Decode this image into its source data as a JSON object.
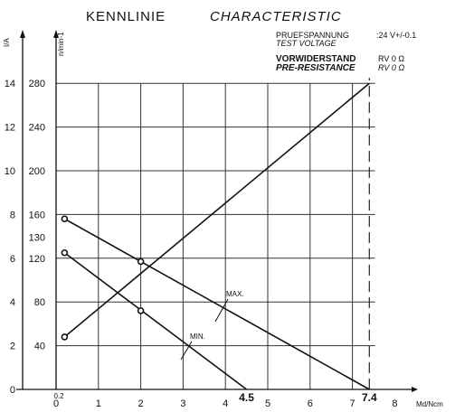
{
  "header": {
    "title_de": "KENNLINIE",
    "title_en": "CHARACTERISTIC",
    "test_voltage_label_de": "PRUEFSPANNUNG",
    "test_voltage_label_en": "TEST VOLTAGE",
    "test_voltage_value": ":24 V+/-0.1",
    "pre_resistance_label_de": "VORWIDERSTAND",
    "pre_resistance_label_en": "PRE-RESISTANCE",
    "pre_resistance_value_de": "RV 0 Ω",
    "pre_resistance_value_en": "RV 0 Ω"
  },
  "chart_data": {
    "type": "line",
    "xlabel": "Md/Ncm",
    "ylabel_left": "I/A",
    "ylabel_right": "n/min-1",
    "x_ticks": [
      "0",
      "1",
      "2",
      "3",
      "4",
      "5",
      "6",
      "7",
      "8"
    ],
    "x_extra_tick": "0.2",
    "x_highlight_ticks": [
      "4.5",
      "7.4"
    ],
    "y_current_ticks": [
      "0",
      "2",
      "4",
      "6",
      "8",
      "10",
      "12",
      "14"
    ],
    "y_speed_ticks": [
      "40",
      "80",
      "120",
      "130",
      "160",
      "200",
      "240",
      "280"
    ],
    "xlim": [
      0,
      8
    ],
    "ylim_current": [
      0,
      14
    ],
    "ylim_speed": [
      0,
      280
    ],
    "grid": true,
    "series": [
      {
        "name": "",
        "axis": "current",
        "points": [
          [
            0.2,
            2.4
          ],
          [
            7.4,
            14
          ]
        ],
        "markers": [
          [
            0.2,
            2.4
          ]
        ]
      },
      {
        "name": "MAX.",
        "axis": "speed",
        "points": [
          [
            0.2,
            156
          ],
          [
            7.4,
            0
          ]
        ],
        "markers": [
          [
            0.2,
            156
          ],
          [
            2.0,
            117
          ]
        ]
      },
      {
        "name": "MIN.",
        "axis": "speed",
        "points": [
          [
            0.2,
            125
          ],
          [
            4.5,
            0
          ]
        ],
        "markers": [
          [
            0.2,
            125
          ],
          [
            2.0,
            72
          ]
        ]
      }
    ],
    "stall_marker_x": 7.4
  }
}
